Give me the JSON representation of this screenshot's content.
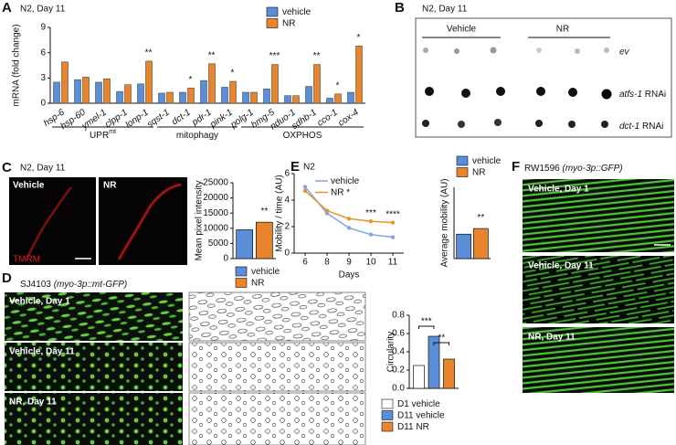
{
  "letters": [
    "A",
    "B",
    "C",
    "D",
    "E",
    "F"
  ],
  "chart_data": [
    {
      "type": "bar",
      "title": "N2, Day 11",
      "ylabel": "mRNA (fold change)",
      "categories": [
        "hsp-6",
        "hsp-60",
        "ymel-1",
        "clpp-1",
        "lonp-1",
        "sqst-1",
        "dct-1",
        "pdr-1",
        "pink-1",
        "polg-1",
        "hmg-5",
        "nduo-1",
        "sdhb-1",
        "cco-1",
        "cox-4"
      ],
      "series": [
        {
          "name": "vehicle",
          "color": "#5b8ed6",
          "values": [
            2.5,
            2.8,
            2.5,
            1.4,
            2.3,
            1.2,
            1.3,
            2.7,
            1.9,
            1.3,
            1.7,
            0.9,
            2.0,
            0.6,
            1.3
          ]
        },
        {
          "name": "NR",
          "color": "#e8842c",
          "values": [
            4.9,
            3.1,
            2.9,
            2.2,
            5.0,
            1.3,
            1.8,
            4.7,
            2.6,
            1.3,
            4.6,
            0.9,
            4.6,
            1.1,
            6.8
          ]
        }
      ],
      "significance": [
        null,
        null,
        null,
        null,
        "**",
        null,
        "*",
        "**",
        "*",
        null,
        "***",
        null,
        "**",
        "*",
        "*"
      ],
      "groups": [
        {
          "label": "UPR",
          "sup": "mt"
        },
        {
          "label": "mitophagy"
        },
        {
          "label": "OXPHOS"
        }
      ],
      "ylim": [
        0,
        9
      ],
      "yticks": [
        0,
        3,
        6,
        9
      ]
    },
    {
      "type": "bar",
      "ylabel": "Mean pixel intensity",
      "categories": [
        "vehicle",
        "NR"
      ],
      "colors": [
        "#5b8ed6",
        "#e8842c"
      ],
      "values": [
        9500,
        12000
      ],
      "significance": [
        null,
        "**"
      ],
      "ylim": [
        0,
        25000
      ],
      "yticks": [
        0,
        5000,
        10000,
        15000,
        20000,
        25000
      ]
    },
    {
      "type": "line",
      "title": "N2",
      "xlabel": "Days",
      "ylabel": "Mobility / time (AU)",
      "categories": [
        "6",
        "8",
        "9",
        "10",
        "11"
      ],
      "series": [
        {
          "name": "vehicle",
          "color": "#7ea6e8",
          "values": [
            5.0,
            3.0,
            1.9,
            1.4,
            1.2
          ]
        },
        {
          "name": "NR",
          "significance": "*",
          "color": "#e8942c",
          "values": [
            4.7,
            3.2,
            2.6,
            2.4,
            2.3
          ]
        }
      ],
      "significance": [
        null,
        null,
        null,
        "***",
        "****"
      ],
      "ylim": [
        0,
        6
      ],
      "yticks": [
        0,
        2,
        4,
        6
      ]
    },
    {
      "type": "bar",
      "ylabel": "Average mobility (AU)",
      "categories": [
        "vehicle",
        "NR"
      ],
      "colors": [
        "#5b8ed6",
        "#e8842c"
      ],
      "values": [
        2.4,
        2.95
      ],
      "significance": [
        null,
        "**"
      ],
      "ylim": [
        0,
        7
      ]
    },
    {
      "type": "bar",
      "ylabel": "Circularity",
      "categories": [
        "D1 vehicle",
        "D11 vehicle",
        "D11 NR"
      ],
      "colors": [
        "#ffffff",
        "#5b8ed6",
        "#e8842c"
      ],
      "values": [
        0.25,
        0.57,
        0.32
      ],
      "brackets": [
        "***",
        "**"
      ],
      "ylim": [
        0,
        0.8
      ],
      "yticks": [
        {
          "value": 0,
          "label": "0.0"
        },
        0.2,
        0.4,
        0.6,
        0.8
      ]
    }
  ],
  "blot": {
    "title": "N2, Day 11",
    "columns": [
      "Vehicle",
      "NR"
    ],
    "rows": [
      {
        "gene": "ev"
      },
      {
        "gene": "atfs-1",
        "suffix": "RNAi"
      },
      {
        "gene": "dct-1",
        "suffix": "RNAi"
      }
    ]
  },
  "tmrm": {
    "title": "N2, Day 11",
    "images": [
      "Vehicle",
      "NR"
    ],
    "stain": "TMRM"
  },
  "mtgfp": {
    "strain": "SJ4103",
    "construct": "(myo-3p::mt-GFP)",
    "images": [
      "Vehicle, Day 1",
      "Vehicle, Day 11",
      "NR, Day 11"
    ]
  },
  "gfp": {
    "strain": "RW1596",
    "construct": "(myo-3p::GFP)",
    "images": [
      "Vehicle, Day 1",
      "Vehicle, Day 11",
      "NR, Day 11"
    ]
  }
}
